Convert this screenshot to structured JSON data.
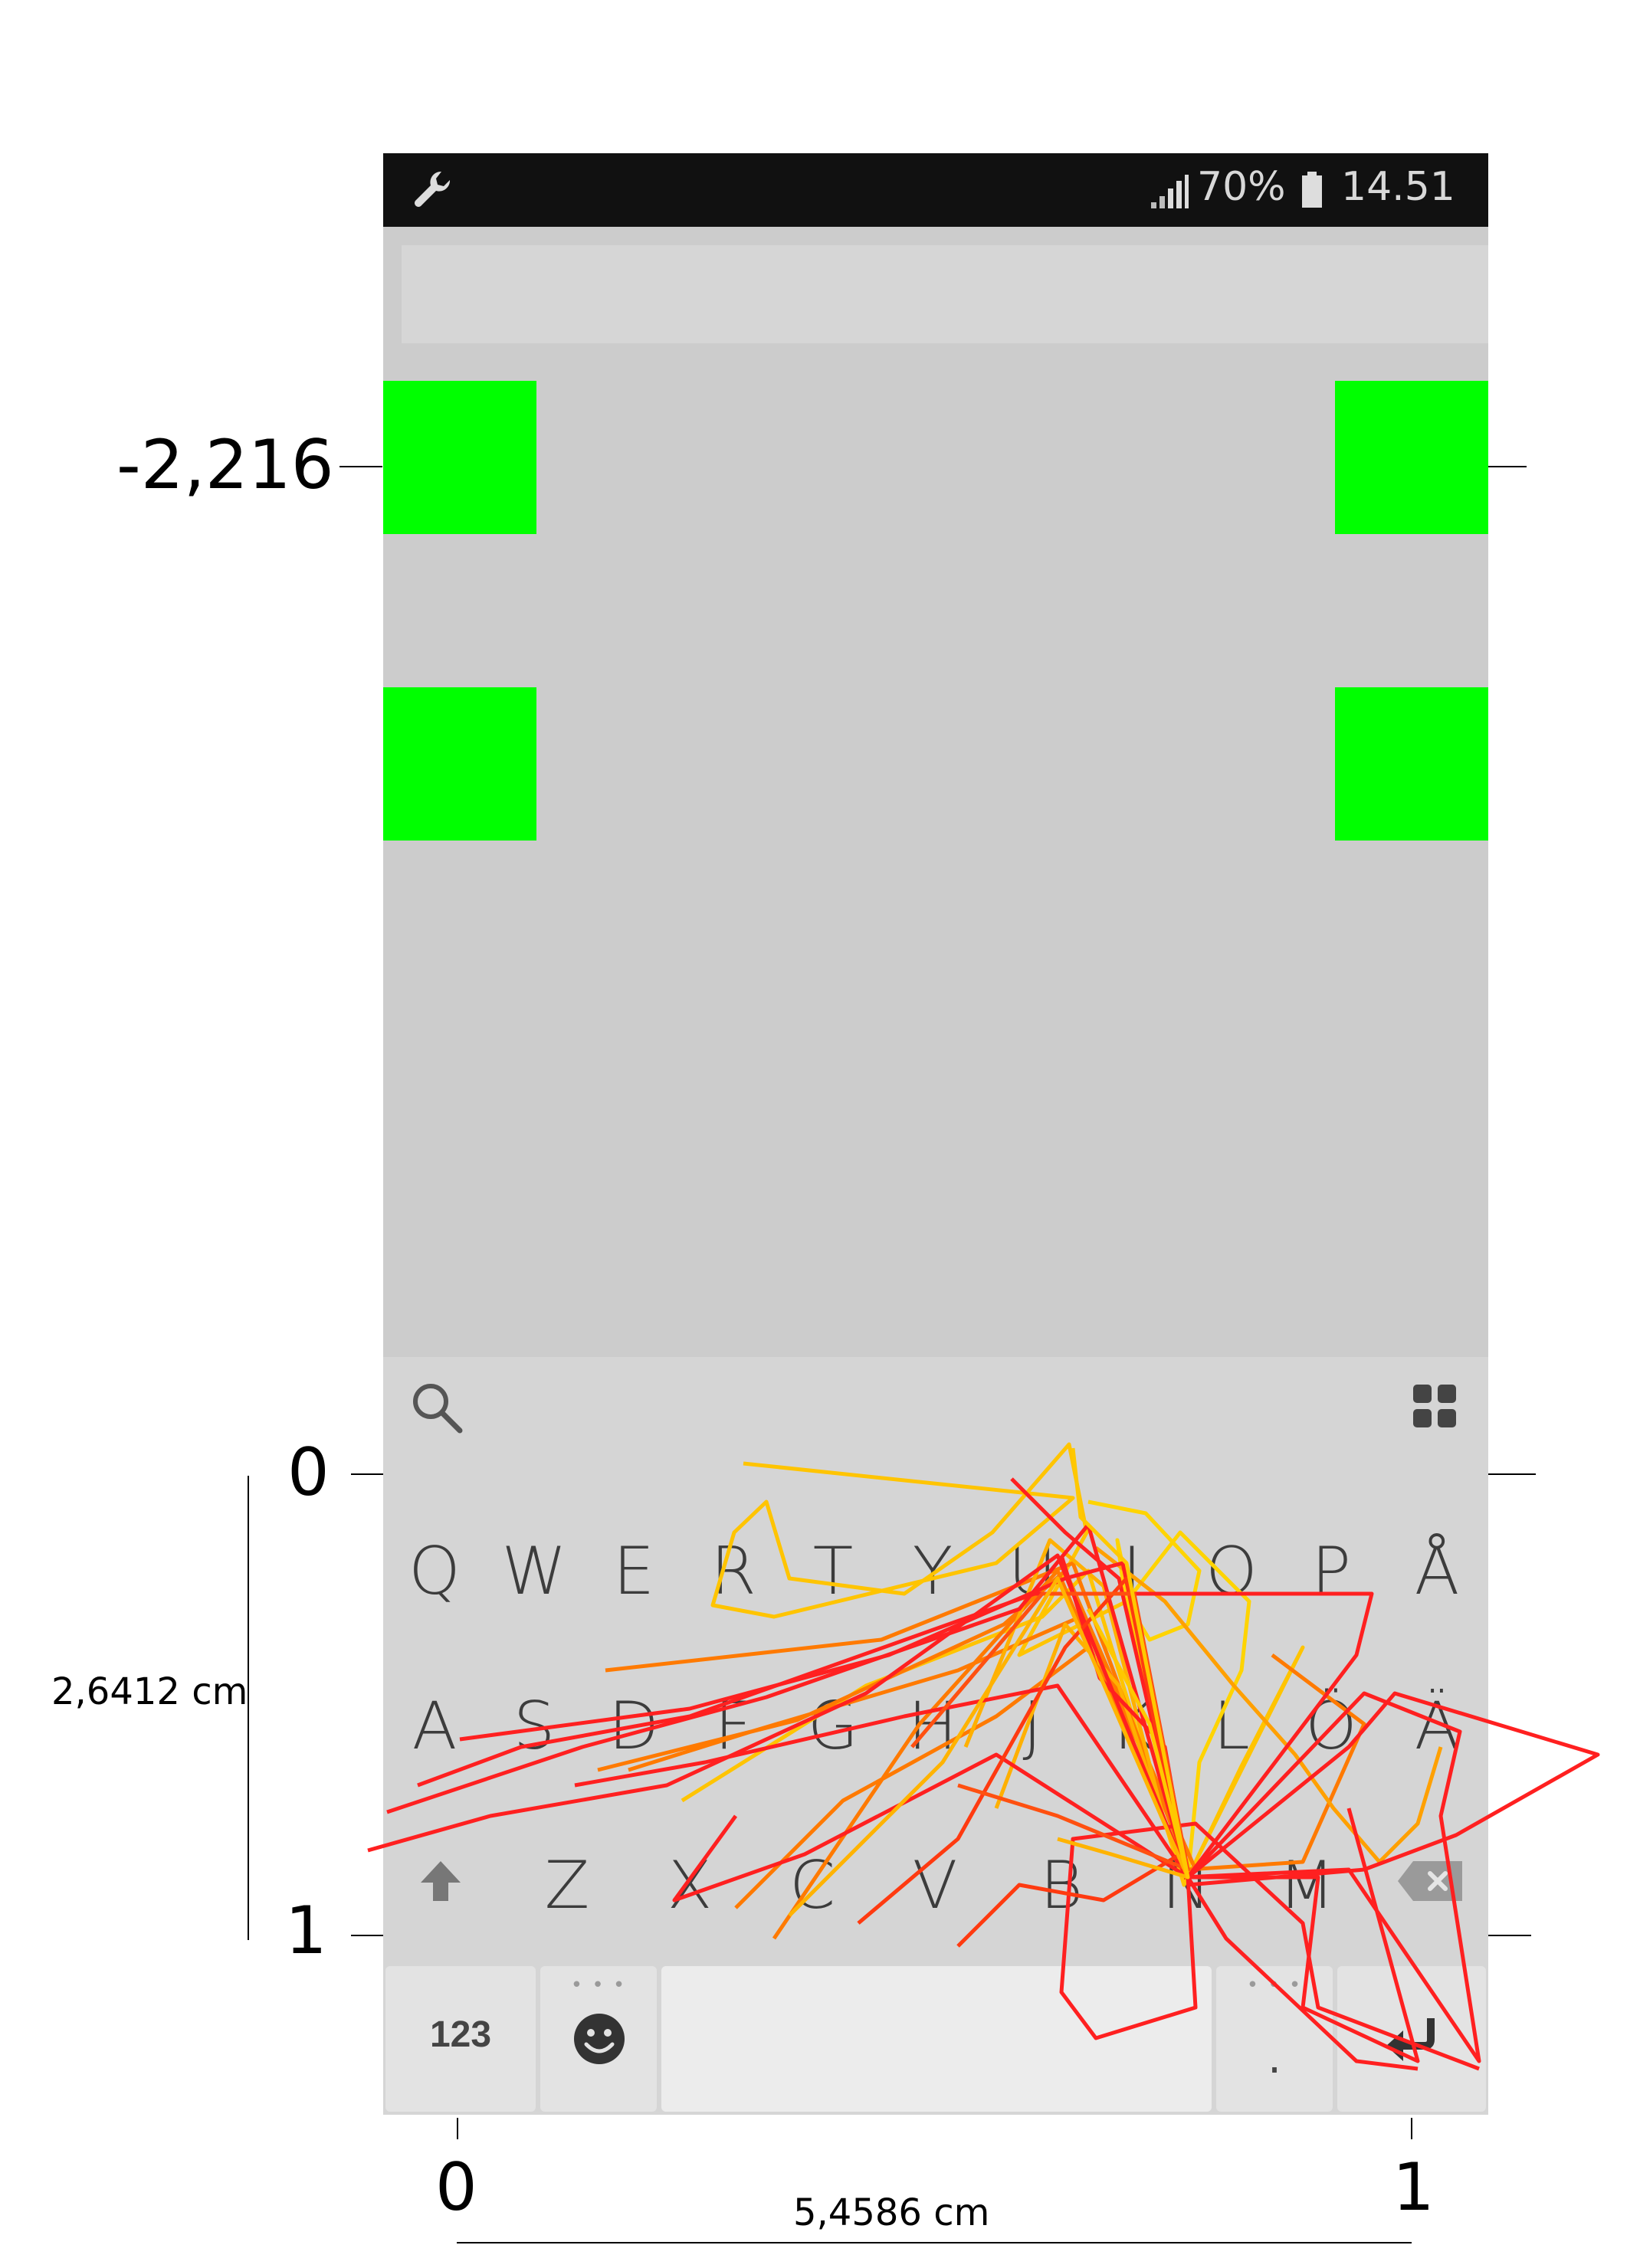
{
  "status_bar": {
    "battery_percent": "70%",
    "time": "14.51",
    "icons": [
      "wrench-icon",
      "signal-icon",
      "battery-icon"
    ]
  },
  "colors": {
    "target": "#00ff00",
    "screen_bg": "#cccccc",
    "keyboard_bg": "#d5d5d5",
    "trace_red": "#ff2020",
    "trace_orange": "#ff7a00",
    "trace_yellow": "#ffc400"
  },
  "keyboard": {
    "top_icons": [
      "search-icon",
      "apps-grid-icon"
    ],
    "row1": [
      "Q",
      "W",
      "E",
      "R",
      "T",
      "Y",
      "U",
      "I",
      "O",
      "P",
      "Å"
    ],
    "row2": [
      "A",
      "S",
      "D",
      "F",
      "G",
      "H",
      "J",
      "K",
      "L",
      "Ö",
      "Ä"
    ],
    "row3": [
      "Z",
      "X",
      "C",
      "V",
      "B",
      "N",
      "M"
    ],
    "row3_icons": [
      "shift-icon",
      "backspace-icon"
    ],
    "key_123": "123",
    "key_period": ".",
    "bottom_icons": [
      "emoji-icon",
      "enter-icon"
    ]
  },
  "axes": {
    "top_target_label": "-2,216",
    "y_zero": "0",
    "y_one": "1",
    "y_measure": "2,6412 cm",
    "x_zero": "0",
    "x_one": "1",
    "x_measure": "5,4586 cm"
  }
}
